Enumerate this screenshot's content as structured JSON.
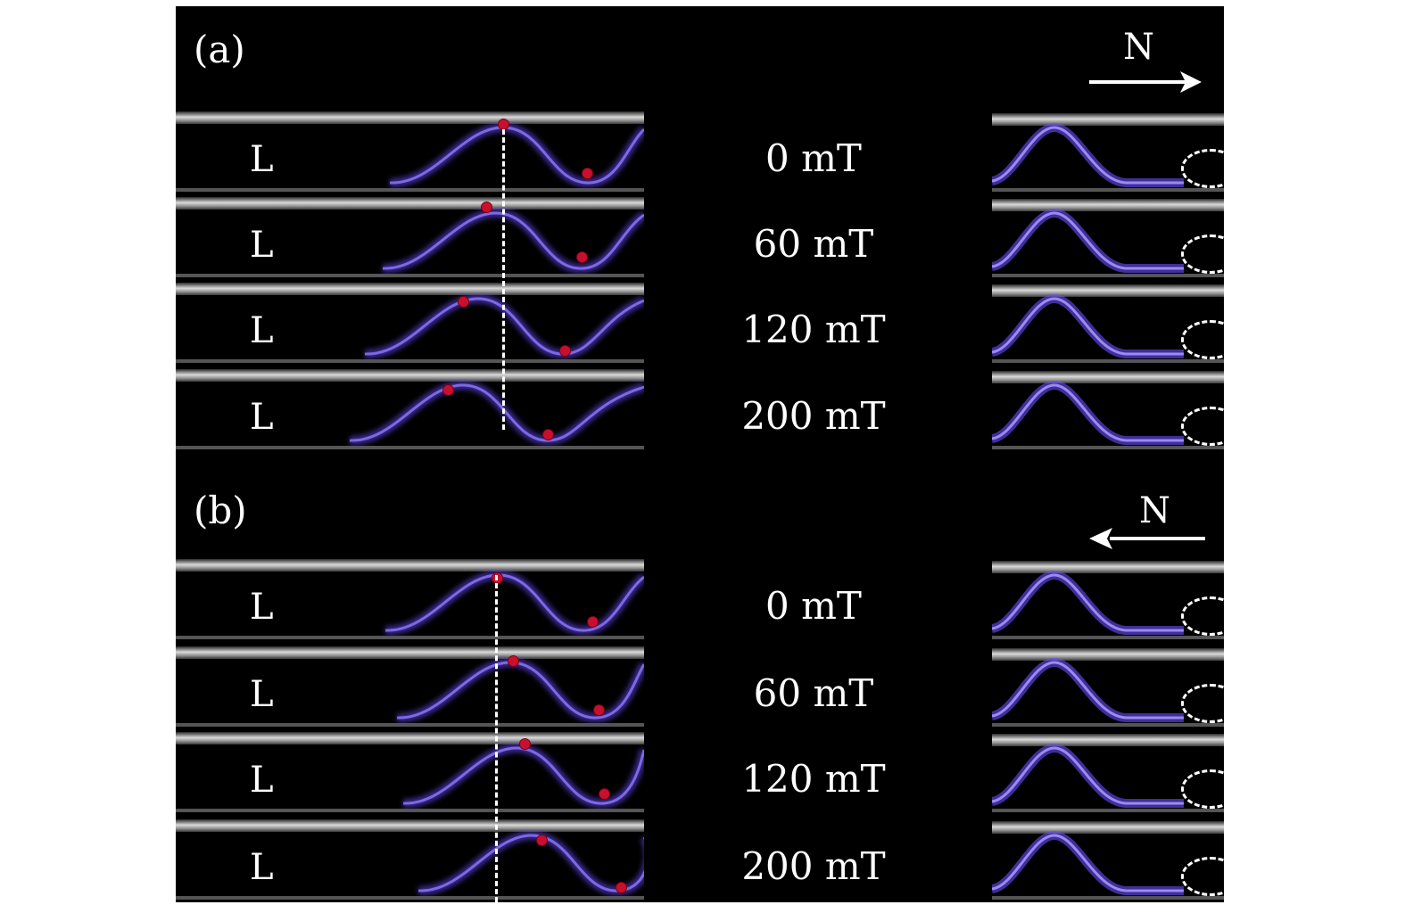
{
  "panel_a": {
    "label": "(a)",
    "north_label": "N",
    "arrow_direction": "right",
    "rows": [
      {
        "tube_label": "L",
        "field": "0 mT"
      },
      {
        "tube_label": "L",
        "field": "60 mT"
      },
      {
        "tube_label": "L",
        "field": "120 mT"
      },
      {
        "tube_label": "L",
        "field": "200 mT"
      }
    ]
  },
  "panel_b": {
    "label": "(b)",
    "north_label": "N",
    "arrow_direction": "left",
    "rows": [
      {
        "tube_label": "L",
        "field": "0 mT"
      },
      {
        "tube_label": "L",
        "field": "60 mT"
      },
      {
        "tube_label": "L",
        "field": "120 mT"
      },
      {
        "tube_label": "L",
        "field": "200 mT"
      }
    ]
  },
  "colors": {
    "background": "#000000",
    "plasma": "#6a4cff",
    "marker": "#c8102e",
    "text": "#ffffff"
  }
}
